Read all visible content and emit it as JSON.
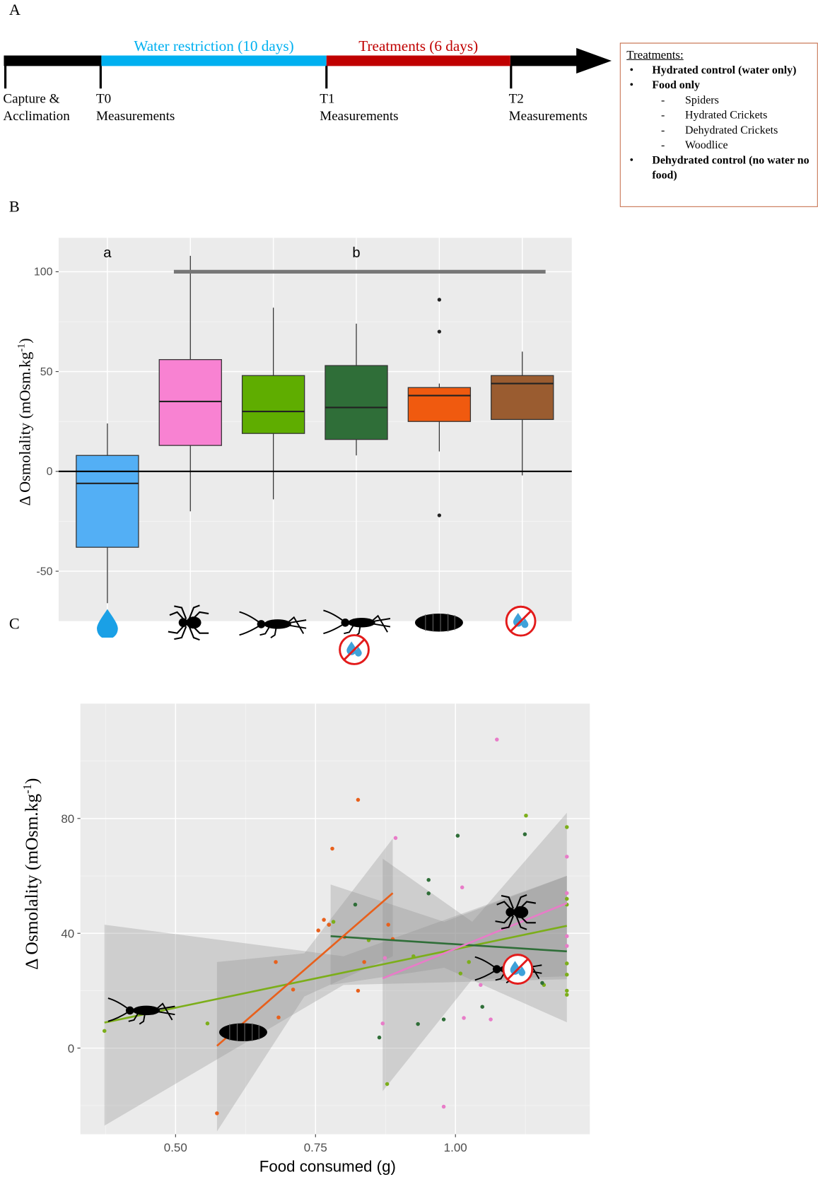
{
  "panel_labels": [
    "A",
    "B",
    "C"
  ],
  "timeline": {
    "phases": [
      {
        "label": "Water restriction (10 days)",
        "color": "#00b0f0"
      },
      {
        "label": "Treatments (6 days)",
        "color": "#c00000"
      }
    ],
    "milestones": [
      [
        "Capture &",
        "Acclimation"
      ],
      [
        "T0",
        "Measurements"
      ],
      [
        "T1",
        "Measurements"
      ],
      [
        "T2",
        "Measurements"
      ]
    ]
  },
  "treatments_box": {
    "title": "Treatments:",
    "items": [
      {
        "text": "Hydrated control (water only)",
        "level": 1
      },
      {
        "text": "Food only",
        "level": 1
      },
      {
        "text": "Spiders",
        "level": 2
      },
      {
        "text": "Hydrated Crickets",
        "level": 2
      },
      {
        "text": "Dehydrated Crickets",
        "level": 2
      },
      {
        "text": "Woodlice",
        "level": 2
      },
      {
        "text": "Dehydrated control (no water no food)",
        "level": 1
      }
    ]
  },
  "chart_data": [
    {
      "type": "box",
      "ylabel": [
        "Δ Osmolality (mOsm.kg",
        "-1",
        ")"
      ],
      "categories": [
        null,
        null,
        null,
        null,
        null,
        null
      ],
      "ylim": [
        -75,
        117
      ],
      "yticks": [
        -50,
        0,
        50,
        100
      ],
      "minor_yticks": [
        -25,
        25,
        75
      ],
      "grid": true,
      "hline": 0,
      "boxes": [
        {
          "color": "#53aff5",
          "low": -66,
          "q1": -38,
          "median": -6,
          "q3": 8,
          "high": 24,
          "outliers": []
        },
        {
          "color": "#f882d2",
          "low": -20,
          "q1": 13,
          "median": 35,
          "q3": 56,
          "high": 108,
          "outliers": []
        },
        {
          "color": "#5fad00",
          "low": -14,
          "q1": 19,
          "median": 30,
          "q3": 48,
          "high": 82,
          "outliers": []
        },
        {
          "color": "#2f6e38",
          "low": 8,
          "q1": 16,
          "median": 32,
          "q3": 53,
          "high": 74,
          "outliers": []
        },
        {
          "color": "#f05a0f",
          "low": 10,
          "q1": 25,
          "median": 38,
          "q3": 42,
          "high": 44,
          "outliers": [
            86,
            70,
            -22
          ]
        },
        {
          "color": "#9a5c30",
          "low": -2,
          "q1": 26,
          "median": 44,
          "q3": 48,
          "high": 60,
          "outliers": []
        }
      ],
      "groups": [
        {
          "label": "a",
          "from": 0,
          "to": 0
        },
        {
          "label": "b",
          "from": 1,
          "to": 5,
          "bar_value": 100
        }
      ]
    },
    {
      "type": "scatter",
      "xlabel": "Food consumed (g)",
      "ylabel": [
        "Δ Osmolality (mOsm.kg",
        "-1",
        ")"
      ],
      "xlim": [
        0.33,
        1.24
      ],
      "ylim": [
        -30,
        120
      ],
      "xticks": [
        {
          "value": 0.5,
          "label": "0.50"
        },
        {
          "value": 0.75,
          "label": "0.75"
        },
        {
          "value": 1,
          "label": "1.00"
        }
      ],
      "yticks": [
        0,
        40,
        80
      ],
      "minor_xticks": [
        0.375,
        0.625,
        0.875,
        1.125
      ],
      "minor_yticks": [
        -20,
        20,
        60,
        100
      ],
      "grid": true,
      "series": [
        {
          "color": "#7cae1a",
          "x": [
            0.373,
            0.557,
            0.782,
            0.845,
            0.878,
            0.925,
            1.009,
            1.024,
            1.126,
            1.158,
            1.199,
            1.199,
            1.199,
            1.199,
            1.199,
            1.199,
            1.199
          ],
          "values": [
            6,
            8.6,
            44,
            37.6,
            -12.5,
            32,
            26,
            30,
            81,
            22,
            77,
            52,
            50,
            29.5,
            25.6,
            20,
            18.6
          ],
          "trend": {
            "x": [
              0.373,
              1.199
            ],
            "y": [
              8.9,
              42.6
            ]
          },
          "ci": {
            "x": [
              0.373,
              0.8,
              1.199
            ],
            "lower": [
              -27,
              22,
              24
            ],
            "upper": [
              43,
              32,
              60
            ]
          }
        },
        {
          "color": "#2f6e38",
          "x": [
            0.774,
            0.821,
            0.864,
            0.952,
            0.952,
            0.933,
            0.979,
            1.004,
            1.048,
            1.124,
            1.155
          ],
          "values": [
            43,
            50,
            3.7,
            58.6,
            53.9,
            8.4,
            10,
            74,
            14.4,
            74.5,
            22.7
          ],
          "trend": {
            "x": [
              0.777,
              1.199
            ],
            "y": [
              39,
              33.7
            ]
          },
          "ci": {
            "x": [
              0.777,
              0.98,
              1.199
            ],
            "lower": [
              22,
              28,
              9
            ],
            "upper": [
              57,
              44,
              60
            ]
          }
        },
        {
          "color": "#e8601c",
          "x": [
            0.574,
            0.679,
            0.684,
            0.71,
            0.755,
            0.765,
            0.774,
            0.78,
            0.802,
            0.826,
            0.826,
            0.837,
            0.88,
            0.888
          ],
          "values": [
            -22.7,
            30,
            10.7,
            20.4,
            41,
            44.7,
            43,
            69.5,
            38.7,
            86.5,
            20,
            30,
            43,
            38
          ],
          "trend": {
            "x": [
              0.574,
              0.888
            ],
            "y": [
              0.8,
              54
            ]
          },
          "ci": {
            "x": [
              0.574,
              0.73,
              0.888
            ],
            "lower": [
              -29,
              18,
              32
            ],
            "upper": [
              30,
              33,
              73
            ]
          }
        },
        {
          "color": "#e87cc8",
          "x": [
            0.87,
            0.874,
            0.893,
            0.979,
            1.012,
            1.015,
            1.045,
            1.063,
            1.074,
            1.199,
            1.199,
            1.199,
            1.199
          ],
          "values": [
            8.6,
            31.4,
            73.2,
            -20.4,
            56,
            10.5,
            22,
            10,
            107.5,
            66.7,
            54,
            35.6,
            39
          ],
          "trend": {
            "x": [
              0.87,
              1.199
            ],
            "y": [
              24.3,
              50.5
            ]
          },
          "ci": {
            "x": [
              0.87,
              1.03,
              1.199
            ],
            "lower": [
              -15,
              24,
              25
            ],
            "upper": [
              66,
              44,
              82
            ]
          }
        }
      ]
    }
  ]
}
